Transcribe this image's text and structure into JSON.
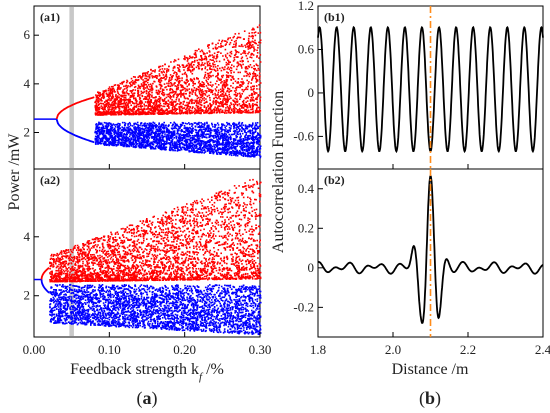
{
  "chart_data": [
    {
      "id": "a1",
      "type": "scatter",
      "panel_label": "(a1)",
      "xlim": [
        0,
        0.3
      ],
      "ylim": [
        0.5,
        7.2
      ],
      "yticks": [
        "2",
        "4",
        "6"
      ],
      "ytick_values": [
        2,
        4,
        6
      ],
      "xtick_values": [
        0.0,
        0.1,
        0.2,
        0.3
      ],
      "shaded_band": [
        0.047,
        0.053
      ],
      "colors": {
        "upper": "#ff0000",
        "lower": "#0000ff",
        "band": "#c8c8c8"
      },
      "bifurcation": {
        "start_x": 0.03,
        "start_y": 2.55,
        "smooth_until_x": 0.08,
        "upper_end_y": 3.45,
        "lower_end_y": 1.6
      }
    },
    {
      "id": "a2",
      "type": "scatter",
      "panel_label": "(a2)",
      "xlim": [
        0,
        0.3
      ],
      "ylim": [
        0.6,
        6.3
      ],
      "yticks": [
        "2",
        "4"
      ],
      "ytick_values": [
        2,
        4
      ],
      "xtick_values": [
        0.0,
        0.1,
        0.2,
        0.3
      ],
      "xticks": [
        "0.00",
        "0.10",
        "0.20",
        "0.30"
      ],
      "shaded_band": [
        0.047,
        0.053
      ],
      "colors": {
        "upper": "#ff0000",
        "lower": "#0000ff",
        "band": "#c8c8c8"
      },
      "bifurcation": {
        "start_x": 0.01,
        "start_y": 2.55,
        "smooth_until_x": 0.02,
        "upper_end_y": 2.95,
        "lower_end_y": 2.1
      }
    },
    {
      "id": "b1",
      "type": "line",
      "panel_label": "(b1)",
      "xlim": [
        1.8,
        2.4
      ],
      "ylim": [
        -1.05,
        1.2
      ],
      "yticks": [
        "1.2",
        "0.6",
        "0",
        "-0.6"
      ],
      "ytick_values": [
        1.2,
        0.6,
        0,
        -0.6
      ],
      "xtick_values": [
        1.8,
        2.0,
        2.2,
        2.4
      ],
      "marker_x": 2.1,
      "colors": {
        "line": "#000000",
        "marker": "#ff8c1a"
      },
      "oscillation": {
        "amplitude": 0.95,
        "period": 0.0455
      }
    },
    {
      "id": "b2",
      "type": "line",
      "panel_label": "(b2)",
      "xlim": [
        1.8,
        2.4
      ],
      "ylim": [
        -0.35,
        0.5
      ],
      "yticks": [
        "0.4",
        "0.2",
        "0",
        "-0.2"
      ],
      "ytick_values": [
        0.4,
        0.2,
        0,
        -0.2
      ],
      "xticks": [
        "1.8",
        "2.0",
        "2.2",
        "2.4"
      ],
      "xtick_values": [
        1.8,
        2.0,
        2.2,
        2.4
      ],
      "marker_x": 2.1,
      "colors": {
        "line": "#000000",
        "marker": "#ff8c1a"
      },
      "peak": {
        "x": 2.1,
        "y": 0.44
      }
    }
  ],
  "labels": {
    "a_ylabel": "Power /mW",
    "a_xlabel": "Feedback strength k",
    "a_xlabel_sub": "f",
    "a_xlabel_unit": " /%",
    "b_ylabel": "Autocorrelation Function",
    "b_xlabel": "Distance /m",
    "caption_a_open": "(",
    "caption_a": "a",
    "caption_a_close": ")",
    "caption_b_open": "(",
    "caption_b": "b",
    "caption_b_close": ")"
  }
}
